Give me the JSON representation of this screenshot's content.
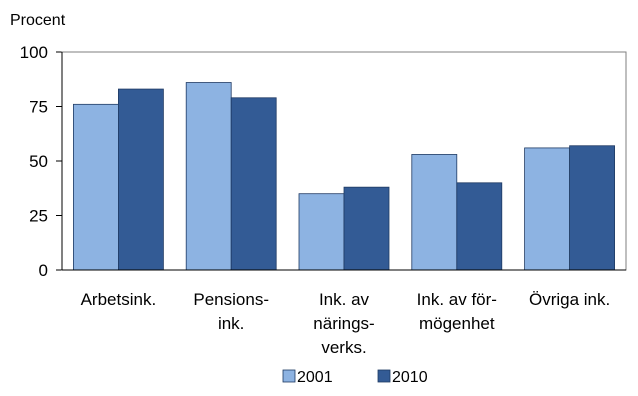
{
  "chart_data": {
    "type": "bar",
    "ylabel": "Procent",
    "ylim": [
      0,
      100
    ],
    "yticks": [
      "0",
      "25",
      "50",
      "75",
      "100"
    ],
    "categories": [
      [
        "Arbetsink."
      ],
      [
        "Pensions-",
        "ink."
      ],
      [
        "Ink. av",
        "närings-",
        "verks."
      ],
      [
        "Ink. av för-",
        "mögenhet"
      ],
      [
        "Övriga ink."
      ]
    ],
    "series": [
      {
        "name": "2001",
        "color": "#8db3e2",
        "values": [
          76,
          86,
          35,
          53,
          56
        ]
      },
      {
        "name": "2010",
        "color": "#335b95",
        "values": [
          83,
          79,
          38,
          40,
          57
        ]
      }
    ],
    "grid": false,
    "legend": "bottom-center"
  }
}
